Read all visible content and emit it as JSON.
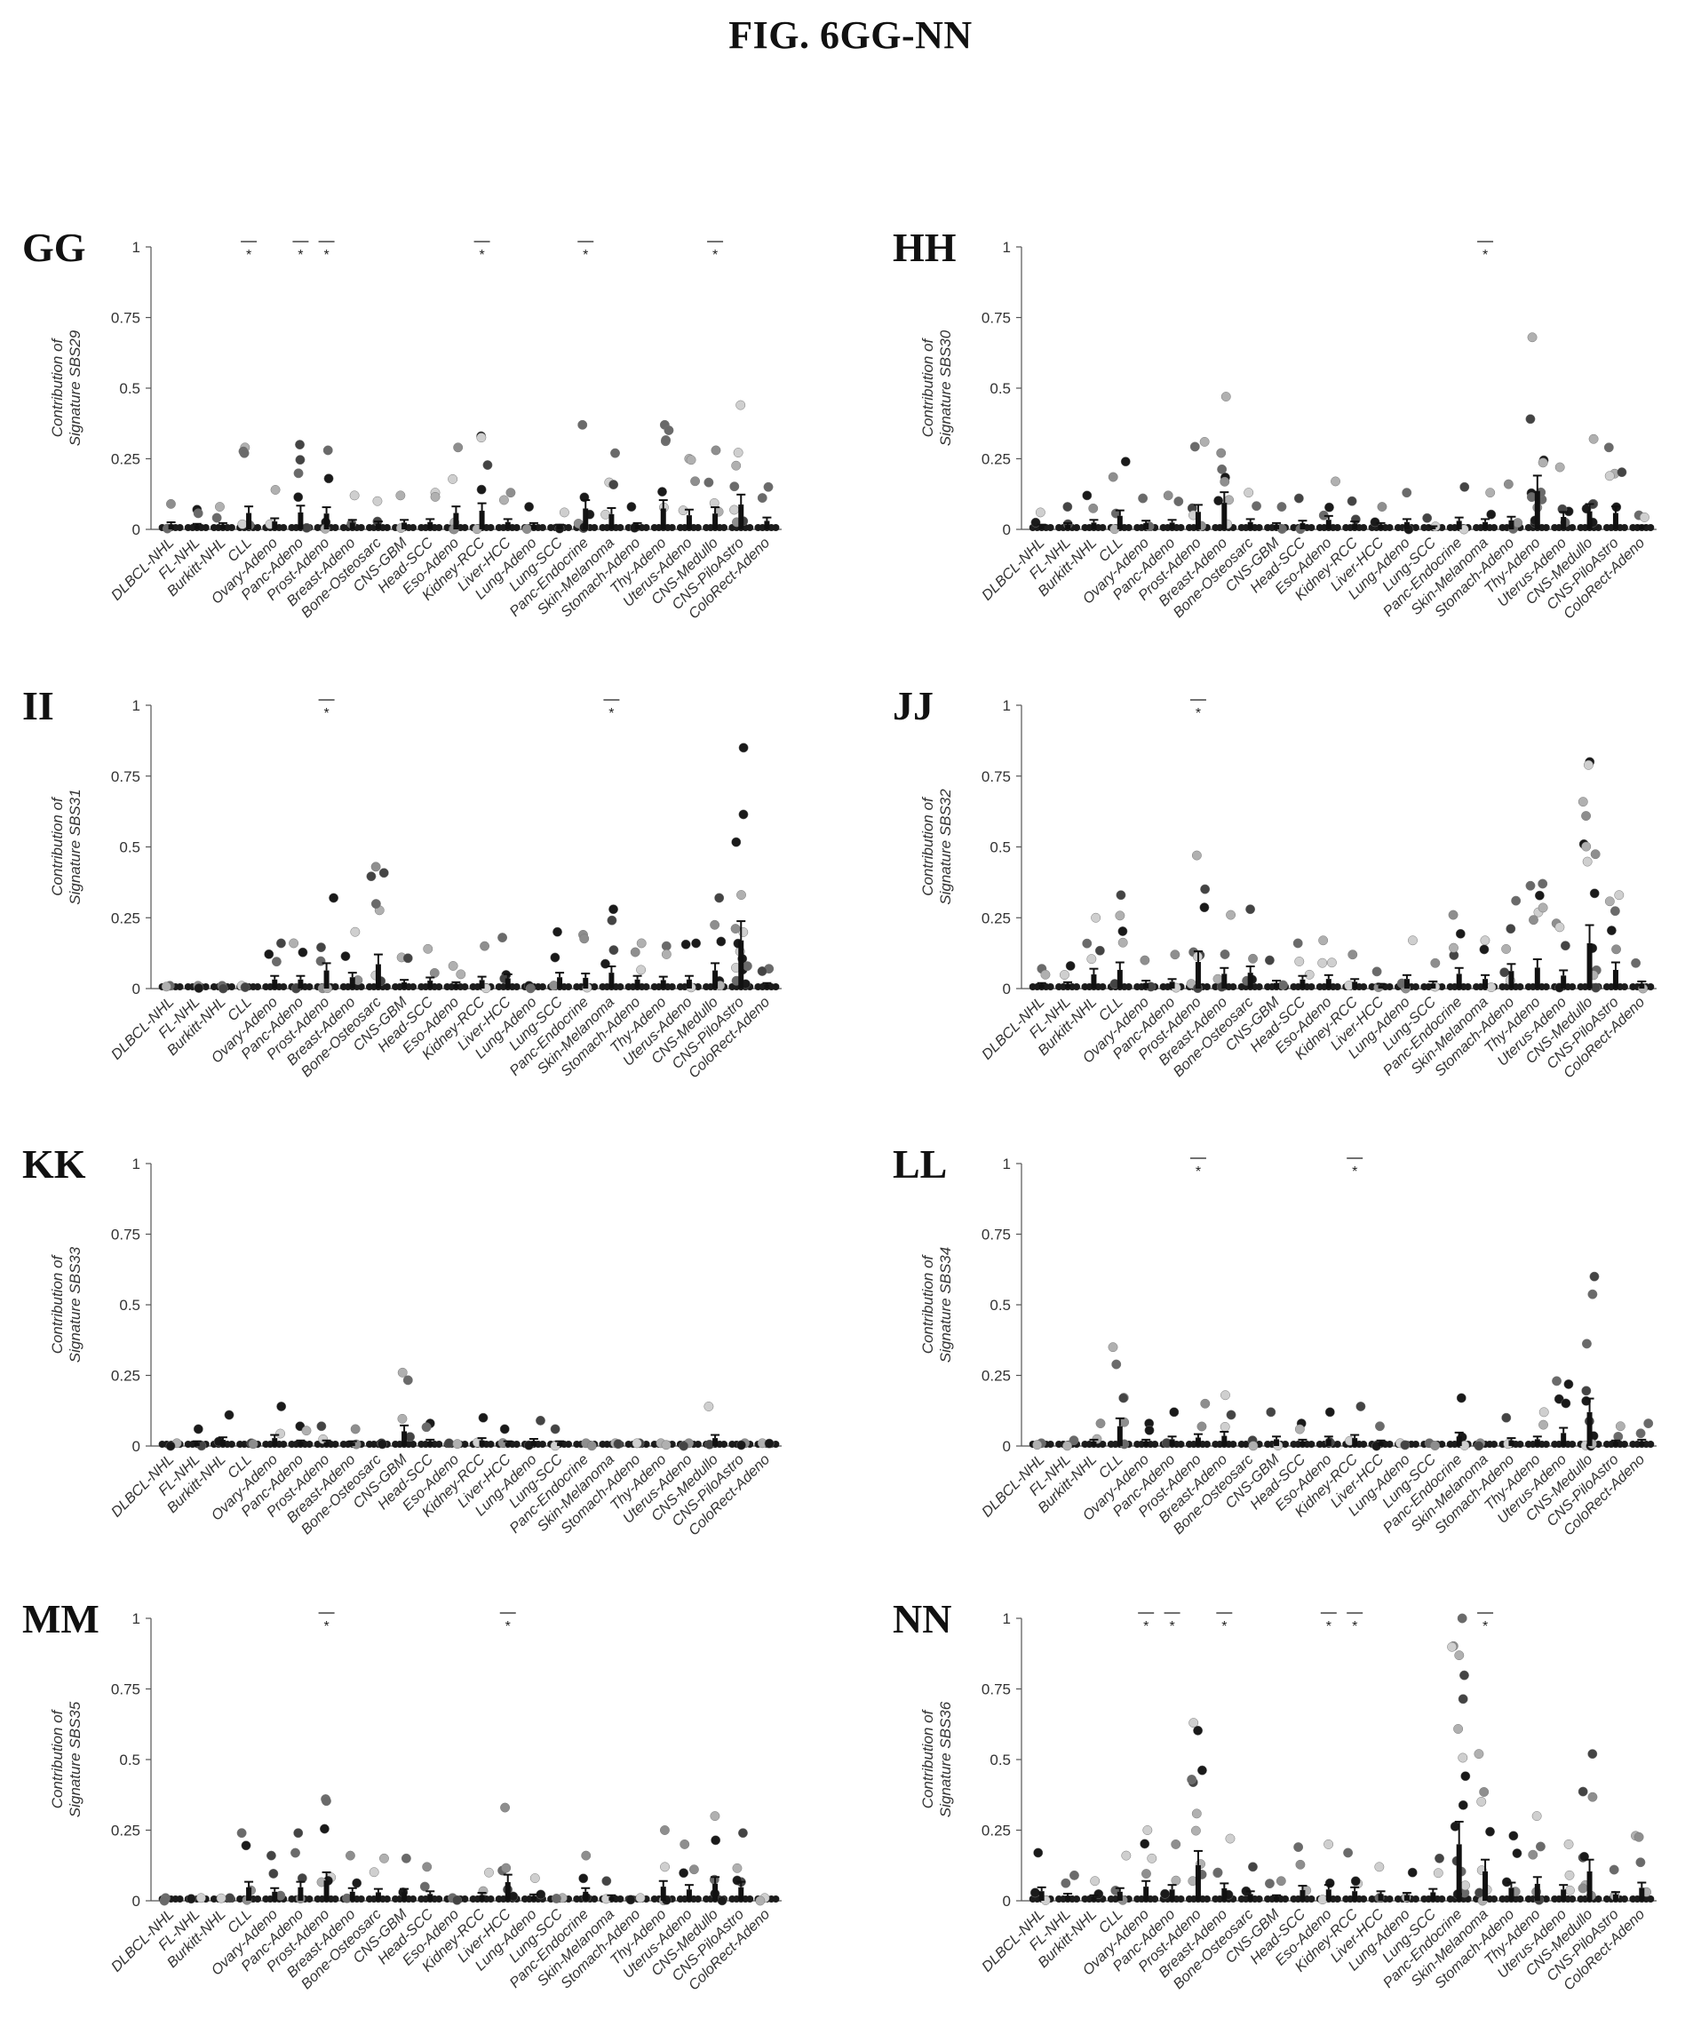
{
  "figure_title": "FIG. 6GG-NN",
  "chart_data": [
    {
      "panel": "GG",
      "type": "scatter",
      "ylabel": [
        "Contribution of",
        "Signature SBS29"
      ],
      "yticks": [
        "0",
        "0.25",
        "0.5",
        "0.75",
        "1"
      ],
      "ylim": [
        0,
        1
      ],
      "categories": [
        "DLBCL-NHL",
        "FL-NHL",
        "Burkitt-NHL",
        "CLL",
        "Ovary-Adeno",
        "Panc-Adeno",
        "Prost-Adeno",
        "Breast-Adeno",
        "Bone-Osteosarc",
        "CNS-GBM",
        "Head-SCC",
        "Eso-Adeno",
        "Kidney-RCC",
        "Liver-HCC",
        "Lung-Adeno",
        "Lung-SCC",
        "Panc-Endocrine",
        "Skin-Melanoma",
        "Stomach-Adeno",
        "Thy-Adeno",
        "Uterus-Adeno",
        "CNS-Medullo",
        "CNS-PiloAstro",
        "ColoRect-Adeno"
      ],
      "max_values": [
        0.09,
        0.07,
        0.08,
        0.29,
        0.14,
        0.3,
        0.28,
        0.12,
        0.1,
        0.12,
        0.13,
        0.29,
        0.33,
        0.13,
        0.08,
        0.06,
        0.37,
        0.27,
        0.08,
        0.37,
        0.25,
        0.28,
        0.44,
        0.15
      ],
      "significant_indices": [
        3,
        5,
        6,
        12,
        16,
        21
      ],
      "sig_label": "*"
    },
    {
      "panel": "HH",
      "type": "scatter",
      "ylabel": [
        "Contribution of",
        "Signature SBS30"
      ],
      "yticks": [
        "0",
        "0.25",
        "0.5",
        "0.75",
        "1"
      ],
      "ylim": [
        0,
        1
      ],
      "categories": [
        "DLBCL-NHL",
        "FL-NHL",
        "Burkitt-NHL",
        "CLL",
        "Ovary-Adeno",
        "Panc-Adeno",
        "Prost-Adeno",
        "Breast-Adeno",
        "Bone-Osteosarc",
        "CNS-GBM",
        "Head-SCC",
        "Eso-Adeno",
        "Kidney-RCC",
        "Liver-HCC",
        "Lung-Adeno",
        "Lung-SCC",
        "Panc-Endocrine",
        "Skin-Melanoma",
        "Stomach-Adeno",
        "Thy-Adeno",
        "Uterus-Adeno",
        "CNS-Medullo",
        "CNS-PiloAstro",
        "ColoRect-Adeno"
      ],
      "max_values": [
        0.06,
        0.08,
        0.12,
        0.24,
        0.11,
        0.12,
        0.31,
        0.47,
        0.13,
        0.08,
        0.11,
        0.17,
        0.1,
        0.08,
        0.13,
        0.04,
        0.15,
        0.13,
        0.16,
        0.68,
        0.22,
        0.32,
        0.29,
        0.05
      ],
      "significant_indices": [
        17
      ],
      "sig_label": "*"
    },
    {
      "panel": "II",
      "type": "scatter",
      "ylabel": [
        "Contribution of",
        "Signature SBS31"
      ],
      "yticks": [
        "0",
        "0.25",
        "0.5",
        "0.75",
        "1"
      ],
      "ylim": [
        0,
        1
      ],
      "categories": [
        "DLBCL-NHL",
        "FL-NHL",
        "Burkitt-NHL",
        "CLL",
        "Ovary-Adeno",
        "Panc-Adeno",
        "Prost-Adeno",
        "Breast-Adeno",
        "Bone-Osteosarc",
        "CNS-GBM",
        "Head-SCC",
        "Eso-Adeno",
        "Kidney-RCC",
        "Liver-HCC",
        "Lung-Adeno",
        "Lung-SCC",
        "Panc-Endocrine",
        "Skin-Melanoma",
        "Stomach-Adeno",
        "Thy-Adeno",
        "Uterus-Adeno",
        "CNS-Medullo",
        "CNS-PiloAstro",
        "ColoRect-Adeno"
      ],
      "max_values": [
        0.01,
        0.01,
        0.01,
        0.01,
        0.16,
        0.16,
        0.32,
        0.2,
        0.43,
        0.11,
        0.14,
        0.08,
        0.15,
        0.18,
        0.01,
        0.2,
        0.19,
        0.28,
        0.16,
        0.15,
        0.16,
        0.32,
        0.85,
        0.07
      ],
      "significant_indices": [
        6,
        17
      ],
      "sig_label": "*"
    },
    {
      "panel": "JJ",
      "type": "scatter",
      "ylabel": [
        "Contribution of",
        "Signature SBS32"
      ],
      "yticks": [
        "0",
        "0.25",
        "0.5",
        "0.75",
        "1"
      ],
      "ylim": [
        0,
        1
      ],
      "categories": [
        "DLBCL-NHL",
        "FL-NHL",
        "Burkitt-NHL",
        "CLL",
        "Ovary-Adeno",
        "Panc-Adeno",
        "Prost-Adeno",
        "Breast-Adeno",
        "Bone-Osteosarc",
        "CNS-GBM",
        "Head-SCC",
        "Eso-Adeno",
        "Kidney-RCC",
        "Liver-HCC",
        "Lung-Adeno",
        "Lung-SCC",
        "Panc-Endocrine",
        "Skin-Melanoma",
        "Stomach-Adeno",
        "Thy-Adeno",
        "Uterus-Adeno",
        "CNS-Medullo",
        "CNS-PiloAstro",
        "ColoRect-Adeno"
      ],
      "max_values": [
        0.07,
        0.08,
        0.25,
        0.33,
        0.1,
        0.12,
        0.47,
        0.26,
        0.28,
        0.1,
        0.16,
        0.17,
        0.12,
        0.06,
        0.17,
        0.09,
        0.26,
        0.17,
        0.31,
        0.37,
        0.23,
        0.8,
        0.33,
        0.09
      ],
      "significant_indices": [
        6
      ],
      "sig_label": "*"
    },
    {
      "panel": "KK",
      "type": "scatter",
      "ylabel": [
        "Contribution of",
        "Signature SBS33"
      ],
      "yticks": [
        "0",
        "0.25",
        "0.5",
        "0.75",
        "1"
      ],
      "ylim": [
        0,
        1
      ],
      "categories": [
        "DLBCL-NHL",
        "FL-NHL",
        "Burkitt-NHL",
        "CLL",
        "Ovary-Adeno",
        "Panc-Adeno",
        "Prost-Adeno",
        "Breast-Adeno",
        "Bone-Osteosarc",
        "CNS-GBM",
        "Head-SCC",
        "Eso-Adeno",
        "Kidney-RCC",
        "Liver-HCC",
        "Lung-Adeno",
        "Lung-SCC",
        "Panc-Endocrine",
        "Skin-Melanoma",
        "Stomach-Adeno",
        "Thy-Adeno",
        "Uterus-Adeno",
        "CNS-Medullo",
        "CNS-PiloAstro",
        "ColoRect-Adeno"
      ],
      "max_values": [
        0.01,
        0.06,
        0.11,
        0.01,
        0.14,
        0.07,
        0.07,
        0.06,
        0.01,
        0.26,
        0.08,
        0.01,
        0.1,
        0.06,
        0.09,
        0.06,
        0.01,
        0.01,
        0.01,
        0.01,
        0.01,
        0.14,
        0.01,
        0.01
      ],
      "significant_indices": [],
      "sig_label": "*"
    },
    {
      "panel": "LL",
      "type": "scatter",
      "ylabel": [
        "Contribution of",
        "Signature SBS34"
      ],
      "yticks": [
        "0",
        "0.25",
        "0.5",
        "0.75",
        "1"
      ],
      "ylim": [
        0,
        1
      ],
      "categories": [
        "DLBCL-NHL",
        "FL-NHL",
        "Burkitt-NHL",
        "CLL",
        "Ovary-Adeno",
        "Panc-Adeno",
        "Prost-Adeno",
        "Breast-Adeno",
        "Bone-Osteosarc",
        "CNS-GBM",
        "Head-SCC",
        "Eso-Adeno",
        "Kidney-RCC",
        "Liver-HCC",
        "Lung-Adeno",
        "Lung-SCC",
        "Panc-Endocrine",
        "Skin-Melanoma",
        "Stomach-Adeno",
        "Thy-Adeno",
        "Uterus-Adeno",
        "CNS-Medullo",
        "CNS-PiloAstro",
        "ColoRect-Adeno"
      ],
      "max_values": [
        0.01,
        0.02,
        0.08,
        0.35,
        0.08,
        0.12,
        0.15,
        0.18,
        0.02,
        0.12,
        0.08,
        0.12,
        0.14,
        0.07,
        0.01,
        0.01,
        0.17,
        0.01,
        0.1,
        0.12,
        0.23,
        0.6,
        0.07,
        0.08
      ],
      "significant_indices": [
        6,
        12
      ],
      "sig_label": "*"
    },
    {
      "panel": "MM",
      "type": "scatter",
      "ylabel": [
        "Contribution of",
        "Signature SBS35"
      ],
      "yticks": [
        "0",
        "0.25",
        "0.5",
        "0.75",
        "1"
      ],
      "ylim": [
        0,
        1
      ],
      "categories": [
        "DLBCL-NHL",
        "FL-NHL",
        "Burkitt-NHL",
        "CLL",
        "Ovary-Adeno",
        "Panc-Adeno",
        "Prost-Adeno",
        "Breast-Adeno",
        "Bone-Osteosarc",
        "CNS-GBM",
        "Head-SCC",
        "Eso-Adeno",
        "Kidney-RCC",
        "Liver-HCC",
        "Lung-Adeno",
        "Lung-SCC",
        "Panc-Endocrine",
        "Skin-Melanoma",
        "Stomach-Adeno",
        "Thy-Adeno",
        "Uterus-Adeno",
        "CNS-Medullo",
        "CNS-PiloAstro",
        "ColoRect-Adeno"
      ],
      "max_values": [
        0.01,
        0.01,
        0.01,
        0.24,
        0.16,
        0.24,
        0.36,
        0.16,
        0.15,
        0.15,
        0.12,
        0.01,
        0.1,
        0.33,
        0.08,
        0.01,
        0.16,
        0.07,
        0.01,
        0.25,
        0.2,
        0.3,
        0.24,
        0.01
      ],
      "significant_indices": [
        6,
        13
      ],
      "sig_label": "*"
    },
    {
      "panel": "NN",
      "type": "scatter",
      "ylabel": [
        "Contribution of",
        "Signature SBS36"
      ],
      "yticks": [
        "0",
        "0.25",
        "0.5",
        "0.75",
        "1"
      ],
      "ylim": [
        0,
        1
      ],
      "categories": [
        "DLBCL-NHL",
        "FL-NHL",
        "Burkitt-NHL",
        "CLL",
        "Ovary-Adeno",
        "Panc-Adeno",
        "Prost-Adeno",
        "Breast-Adeno",
        "Bone-Osteosarc",
        "CNS-GBM",
        "Head-SCC",
        "Eso-Adeno",
        "Kidney-RCC",
        "Liver-HCC",
        "Lung-Adeno",
        "Lung-SCC",
        "Panc-Endocrine",
        "Skin-Melanoma",
        "Stomach-Adeno",
        "Thy-Adeno",
        "Uterus-Adeno",
        "CNS-Medullo",
        "CNS-PiloAstro",
        "ColoRect-Adeno"
      ],
      "max_values": [
        0.17,
        0.09,
        0.07,
        0.16,
        0.25,
        0.2,
        0.63,
        0.22,
        0.12,
        0.07,
        0.19,
        0.2,
        0.17,
        0.12,
        0.1,
        0.15,
        1.0,
        0.52,
        0.23,
        0.3,
        0.2,
        0.52,
        0.11,
        0.23
      ],
      "significant_indices": [
        4,
        5,
        7,
        11,
        12,
        17
      ],
      "sig_label": "*"
    }
  ]
}
